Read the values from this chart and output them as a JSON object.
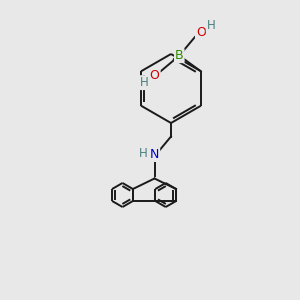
{
  "background_color": "#e8e8e8",
  "bond_color": "#1a1a1a",
  "atom_colors": {
    "B": "#2e8b00",
    "O": "#cc0000",
    "N": "#0000cc",
    "H": "#4a8080",
    "C": "#1a1a1a"
  },
  "figsize": [
    3.0,
    3.0
  ],
  "dpi": 100
}
